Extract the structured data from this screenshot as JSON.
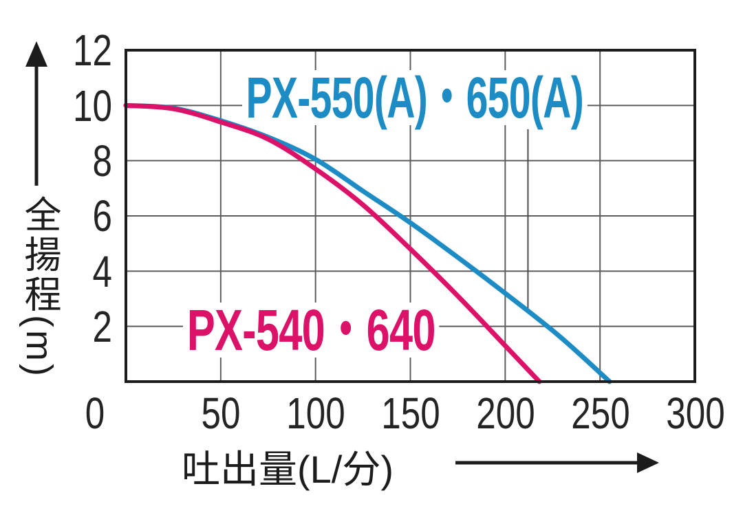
{
  "chart_data": {
    "type": "line",
    "title": "",
    "xlabel": "吐出量(L/分)",
    "ylabel": "全揚程(m)",
    "xlim": [
      0,
      300
    ],
    "ylim": [
      0,
      12
    ],
    "grid": true,
    "xgrid": [
      50,
      100,
      150,
      200,
      250
    ],
    "ygrid": [
      2,
      4,
      6,
      8,
      10
    ],
    "xtick_labels": [
      "0",
      "50",
      "100",
      "150",
      "200",
      "250",
      "300"
    ],
    "ytick_labels": [
      "12",
      "10",
      "8",
      "6",
      "4",
      "2"
    ],
    "axis_color": "#1c1c1c",
    "grid_color": "#5c5c5c",
    "series": [
      {
        "name": "PX-550(A)・650(A)",
        "color": "#1d8cc4",
        "x": [
          0,
          25,
          50,
          75,
          100,
          125,
          150,
          175,
          200,
          225,
          240,
          255
        ],
        "y": [
          10.0,
          9.9,
          9.45,
          8.85,
          8.05,
          6.9,
          5.75,
          4.5,
          3.2,
          1.85,
          0.95,
          0
        ]
      },
      {
        "name": "PX-540・640",
        "color": "#dc1268",
        "x": [
          0,
          25,
          50,
          75,
          100,
          125,
          150,
          175,
          200,
          218
        ],
        "y": [
          10.0,
          9.88,
          9.4,
          8.78,
          7.7,
          6.4,
          4.8,
          3.1,
          1.3,
          0
        ]
      }
    ],
    "extra_line": {
      "x": 212,
      "y_top": 9.14,
      "y_bottom": 2.56
    },
    "legend_position": "inline-on-plot"
  }
}
